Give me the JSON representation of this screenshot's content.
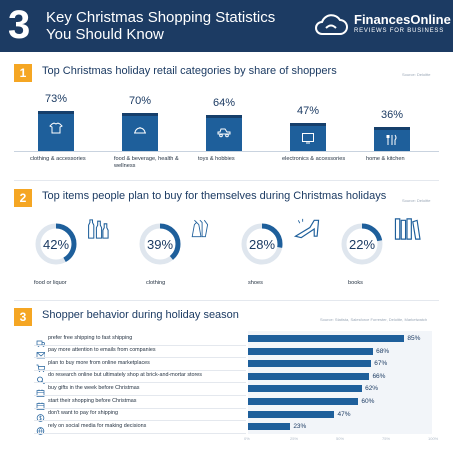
{
  "header": {
    "number": "3",
    "title_line1": "Key Christmas Shopping Statistics",
    "title_line2": "You Should Know",
    "brand_name": "FinancesOnline",
    "brand_tagline": "REVIEWS FOR BUSINESS"
  },
  "sections": [
    {
      "number": "1",
      "title": "Top Christmas holiday retail categories by share of shoppers",
      "source": "Source: Deloitte"
    },
    {
      "number": "2",
      "title": "Top items people plan to buy for themselves during Christmas holidays",
      "source": "Source: Deloitte"
    },
    {
      "number": "3",
      "title": "Shopper behavior during holiday season",
      "source": "Source: Statista, Salesforce Forrester, Deloitte, Marketwatch"
    }
  ],
  "icons": {
    "retail": [
      "shirt-icon",
      "food-tray-icon",
      "toy-car-icon",
      "tv-icon",
      "kitchen-utensils-icon"
    ],
    "items": [
      "bottles-icon",
      "dress-icon",
      "high-heel-icon",
      "books-icon"
    ],
    "behavior": [
      "truck-icon",
      "envelope-icon",
      "cart-icon",
      "magnifier-icon",
      "calendar-icon",
      "calendar-icon",
      "dollar-icon",
      "globe-icon"
    ]
  },
  "colors": {
    "header_bg": "#1c3b63",
    "accent_orange": "#f5a623",
    "bar_blue": "#1e5f9b",
    "ring_track": "#dfe6ee"
  },
  "chart_data": [
    {
      "type": "bar",
      "categories": [
        "clothing & accessories",
        "food & beverage, health & wellness",
        "toys & hobbies",
        "electronics & accessories",
        "home & kitchen"
      ],
      "values": [
        73,
        70,
        64,
        47,
        36
      ],
      "value_labels": [
        "73%",
        "70%",
        "64%",
        "47%",
        "36%"
      ],
      "unit": "%",
      "ylim": [
        0,
        100
      ]
    },
    {
      "type": "pie",
      "categories": [
        "food or liquor",
        "clothing",
        "shoes",
        "books"
      ],
      "values": [
        42,
        39,
        28,
        22
      ],
      "value_labels": [
        "42%",
        "39%",
        "28%",
        "22%"
      ],
      "unit": "%"
    },
    {
      "type": "bar",
      "orientation": "horizontal",
      "categories": [
        "prefer free shipping to fast shipping",
        "pay more attention to emails from companies",
        "plan to buy more from online marketplaces",
        "do research online but ultimately shop at brick-and-mortar stores",
        "buy gifts in the week before Christmas",
        "start their shopping before Christmas",
        "don't want to pay for shipping",
        "rely on social media for making decisions"
      ],
      "values": [
        85,
        68,
        67,
        66,
        62,
        60,
        47,
        23
      ],
      "value_labels": [
        "85%",
        "68%",
        "67%",
        "66%",
        "62%",
        "60%",
        "47%",
        "23%"
      ],
      "xlim": [
        0,
        100
      ],
      "xticks": [
        "0%",
        "25%",
        "50%",
        "75%",
        "100%"
      ]
    }
  ]
}
